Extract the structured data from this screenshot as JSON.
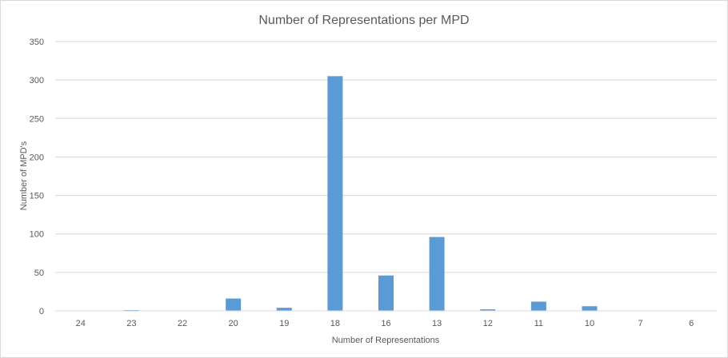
{
  "chart_data": {
    "type": "bar",
    "title": "Number of Representations per MPD",
    "xlabel": "Number  of Representations",
    "ylabel": "Number  of MPD's",
    "categories": [
      "24",
      "23",
      "22",
      "20",
      "19",
      "18",
      "16",
      "13",
      "12",
      "11",
      "10",
      "7",
      "6"
    ],
    "values": [
      0,
      1,
      0,
      16,
      4,
      305,
      46,
      96,
      2,
      12,
      6,
      0,
      0
    ],
    "ylim": [
      0,
      350
    ],
    "yticks": [
      "0",
      "50",
      "100",
      "150",
      "200",
      "250",
      "300",
      "350"
    ],
    "grid": true,
    "legend": "none",
    "bar_color": "#5b9bd5"
  }
}
